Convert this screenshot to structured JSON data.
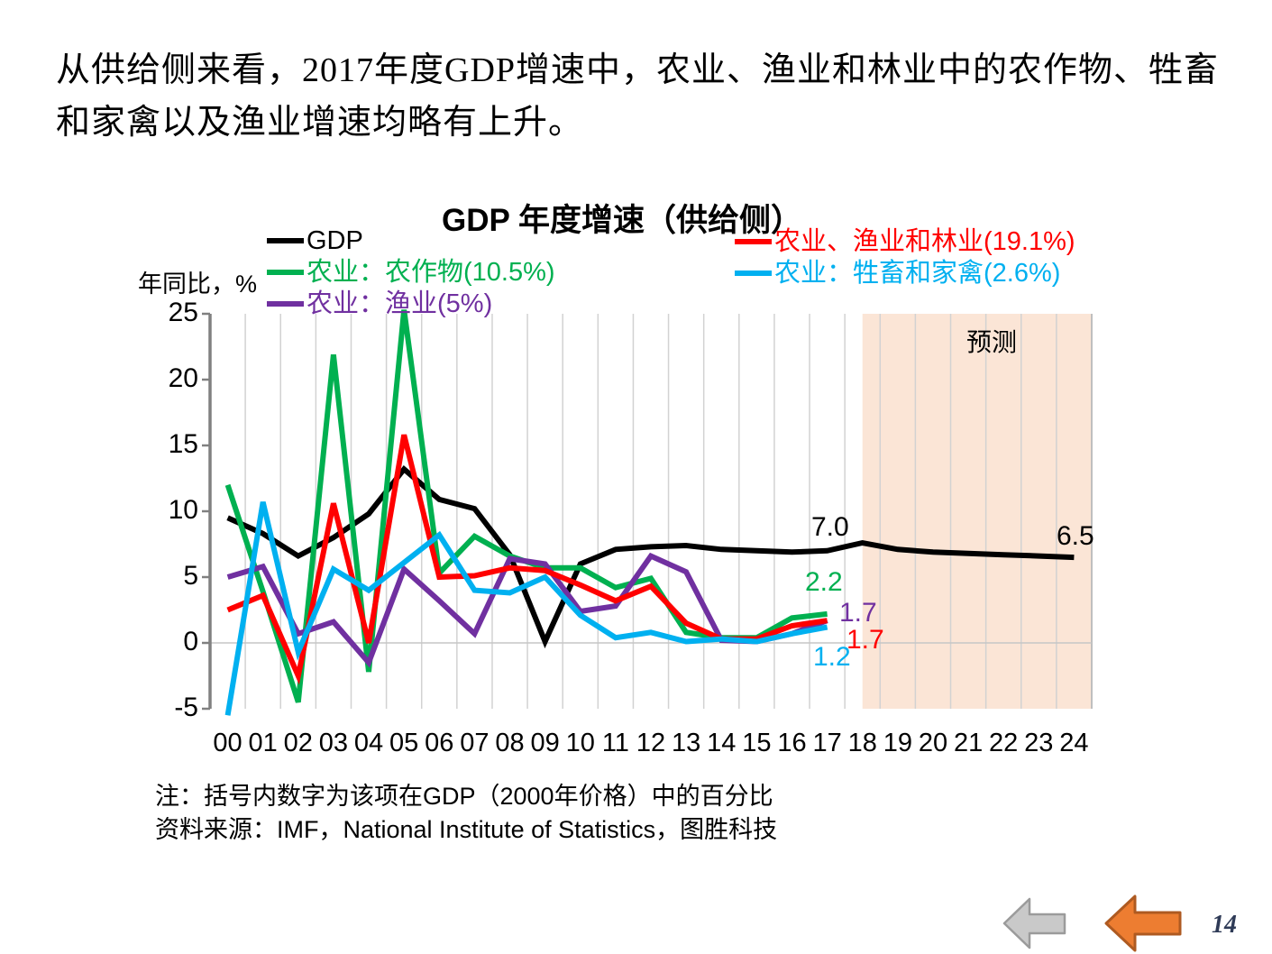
{
  "intro": {
    "line1": "从供给侧来看，2017年度GDP增速中，农业、渔业和林业中的农作物、牲畜",
    "line2": "和家禽以及渔业增速均略有上升。"
  },
  "chart": {
    "title": "GDP 年度增速（供给侧）",
    "y_axis_label": "年同比，%",
    "colors": {
      "band": "#FBE5D6",
      "gridline": "#D2D2D2",
      "border": "#BFBFBF",
      "zero_line": "#C6C6C6",
      "axis": "#808080"
    }
  },
  "chart_data": {
    "type": "line",
    "title": "GDP 年度增速（供给侧）",
    "ylabel": "年同比，%",
    "ylim": [
      -5,
      25
    ],
    "yticks": [
      25,
      20,
      15,
      10,
      5,
      0,
      -5
    ],
    "x_labels": [
      "00",
      "01",
      "02",
      "03",
      "04",
      "05",
      "06",
      "07",
      "08",
      "09",
      "10",
      "11",
      "12",
      "13",
      "14",
      "15",
      "16",
      "17",
      "18",
      "19",
      "20",
      "21",
      "22",
      "23",
      "24"
    ],
    "legend_position": "top",
    "grid": "vertical-per-year, horizontal-at-zero",
    "series": [
      {
        "name": "GDP",
        "color": "#000000",
        "values": [
          9.5,
          8.3,
          6.6,
          8.0,
          9.8,
          13.2,
          10.9,
          10.2,
          6.7,
          0.1,
          6.0,
          7.1,
          7.3,
          7.4,
          7.1,
          7.0,
          6.9,
          7.0,
          7.6,
          7.1,
          6.9,
          6.8,
          6.7,
          6.6,
          6.5
        ]
      },
      {
        "name": "农业：农作物(10.5%)",
        "color": "#00B050",
        "values": [
          12.0,
          3.9,
          -4.5,
          21.9,
          -2.2,
          25.3,
          5.3,
          8.1,
          6.6,
          5.7,
          5.7,
          4.2,
          4.9,
          0.8,
          0.4,
          0.4,
          1.9,
          2.2
        ]
      },
      {
        "name": "农业：渔业(5%)",
        "color": "#7030A0",
        "values": [
          5.0,
          5.8,
          0.7,
          1.6,
          -1.5,
          5.6,
          3.2,
          0.7,
          6.4,
          6.0,
          2.4,
          2.8,
          6.6,
          5.4,
          0.2,
          0.1,
          0.7,
          1.7
        ]
      },
      {
        "name": "农业、渔业和林业(19.1%)",
        "color": "#FF0000",
        "values": [
          2.5,
          3.6,
          -2.5,
          10.6,
          0.0,
          15.8,
          5.0,
          5.1,
          5.7,
          5.5,
          4.4,
          3.2,
          4.3,
          1.5,
          0.3,
          0.3,
          1.3,
          1.7
        ]
      },
      {
        "name": "农业：牲畜和家禽(2.6%)",
        "color": "#00B0F0",
        "values": [
          -5.5,
          10.7,
          -0.7,
          5.6,
          4.0,
          6.1,
          8.2,
          4.0,
          3.8,
          5.0,
          2.1,
          0.4,
          0.8,
          0.1,
          0.3,
          0.1,
          0.7,
          1.2
        ]
      }
    ],
    "annotations": [
      {
        "text": "7.0",
        "series": "GDP",
        "color": "#000000"
      },
      {
        "text": "6.5",
        "series": "GDP",
        "color": "#000000"
      },
      {
        "text": "2.2",
        "series": "农业：农作物(10.5%)",
        "color": "#00B050"
      },
      {
        "text": "1.7",
        "series": "农业：渔业(5%)",
        "color": "#7030A0"
      },
      {
        "text": "1.7",
        "series": "农业、渔业和林业(19.1%)",
        "color": "#FF0000"
      },
      {
        "text": "1.2",
        "series": "农业：牲畜和家禽(2.6%)",
        "color": "#00B0F0"
      }
    ],
    "forecast_region": {
      "label": "预测",
      "start_year": "18",
      "end_year": "24"
    }
  },
  "notes": {
    "line1": "注：括号内数字为该项在GDP（2000年价格）中的百分比",
    "line2": "资料来源：IMF，National Institute of Statistics，图胜科技"
  },
  "pagination": {
    "page_number": "14"
  }
}
